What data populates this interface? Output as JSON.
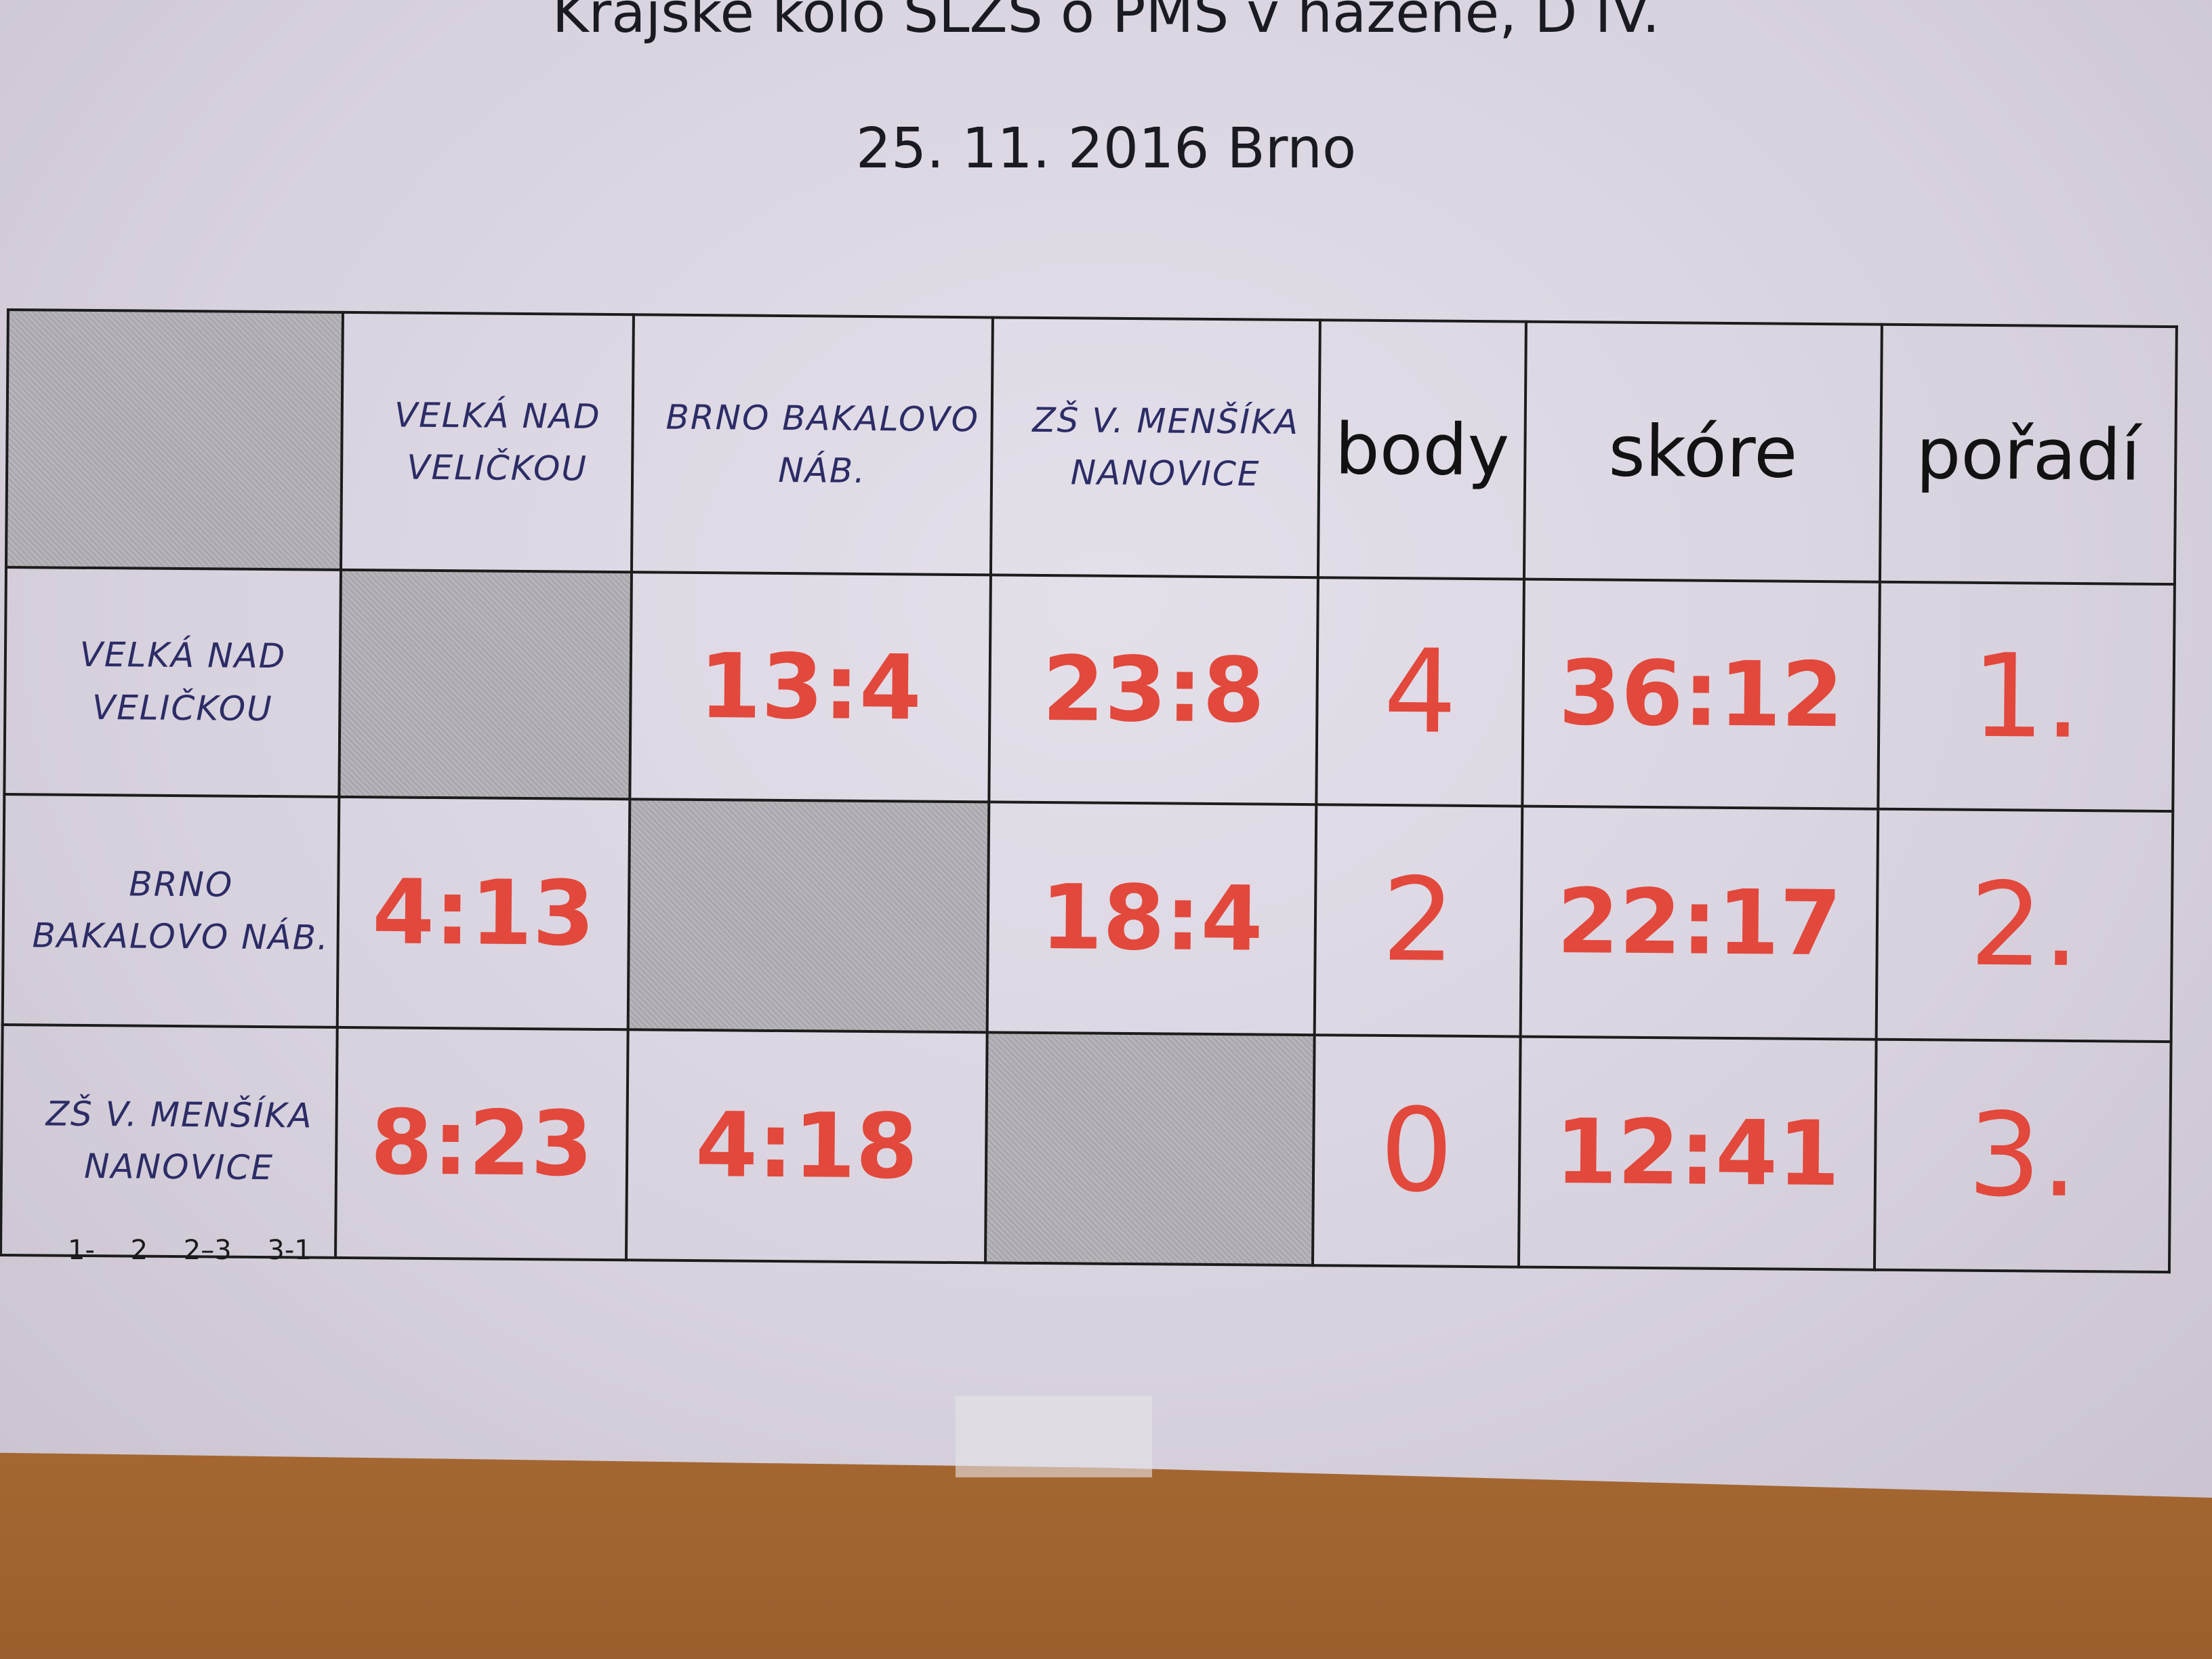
{
  "document": {
    "title": "Krajske kolo SLZS o PMS v házené, D IV.",
    "date_place": "25. 11. 2016 Brno",
    "match_order": "1- 2 2–3 3-1"
  },
  "table": {
    "columns": [
      "VELKÁ NAD VELIČKOU",
      "BRNO BAKALOVO NÁB.",
      "ZŠ V. MENŠÍKA NANOVICE",
      "body",
      "skóre",
      "pořadí"
    ],
    "rows": [
      {
        "team": "VELKÁ NAD VELIČKOU",
        "results": [
          "",
          "13:4",
          "23:8"
        ],
        "body": "4",
        "skore": "36:12",
        "poradi": "1."
      },
      {
        "team": "BRNO BAKALOVO NÁB.",
        "results": [
          "4:13",
          "",
          "18:4"
        ],
        "body": "2",
        "skore": "22:17",
        "poradi": "2."
      },
      {
        "team": "ZŠ V. MENŠÍKA NANOVICE",
        "results": [
          "8:23",
          "4:18",
          ""
        ],
        "body": "0",
        "skore": "12:41",
        "poradi": "3."
      }
    ]
  },
  "colors": {
    "handwriting_red": "#e2483c",
    "handwriting_blue": "#2c2c66",
    "paper": "#d8d2de",
    "shaded_cell": "#b0adb4"
  }
}
